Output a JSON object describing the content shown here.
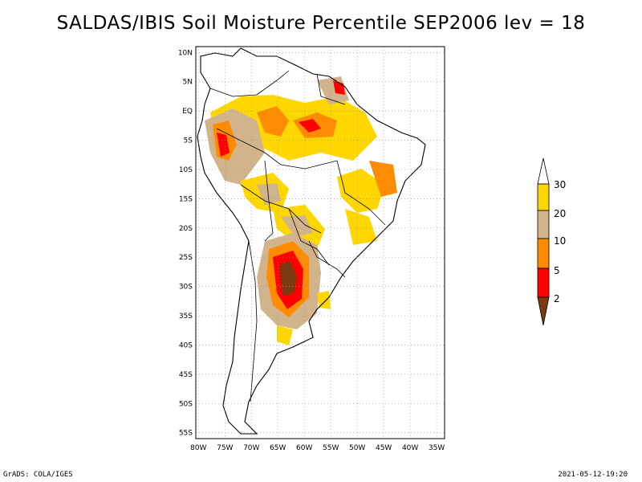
{
  "title": "SALDAS/IBIS Soil Moisture Percentile SEP2006 lev = 18",
  "map": {
    "lat_labels": [
      "10N",
      "5N",
      "EQ",
      "5S",
      "10S",
      "15S",
      "20S",
      "25S",
      "30S",
      "35S",
      "40S",
      "45S",
      "50S",
      "55S"
    ],
    "lon_labels": [
      "80W",
      "75W",
      "70W",
      "65W",
      "60W",
      "55W",
      "50W",
      "45W",
      "40W",
      "35W"
    ],
    "lon_range": [
      -80.5,
      -33.5
    ],
    "lat_range": [
      -56,
      11
    ]
  },
  "legend": {
    "levels": [
      "2",
      "5",
      "10",
      "20",
      "30"
    ],
    "colors": {
      "below2": "#7a3b10",
      "2-5": "#ff0000",
      "5-10": "#ff8c00",
      "10-20": "#d2b48c",
      "20-30": "#ffd700",
      "above30": "#ffffff"
    }
  },
  "footer": {
    "left": "GrADS: COLA/IGES",
    "right": "2021-05-12-19:20"
  }
}
